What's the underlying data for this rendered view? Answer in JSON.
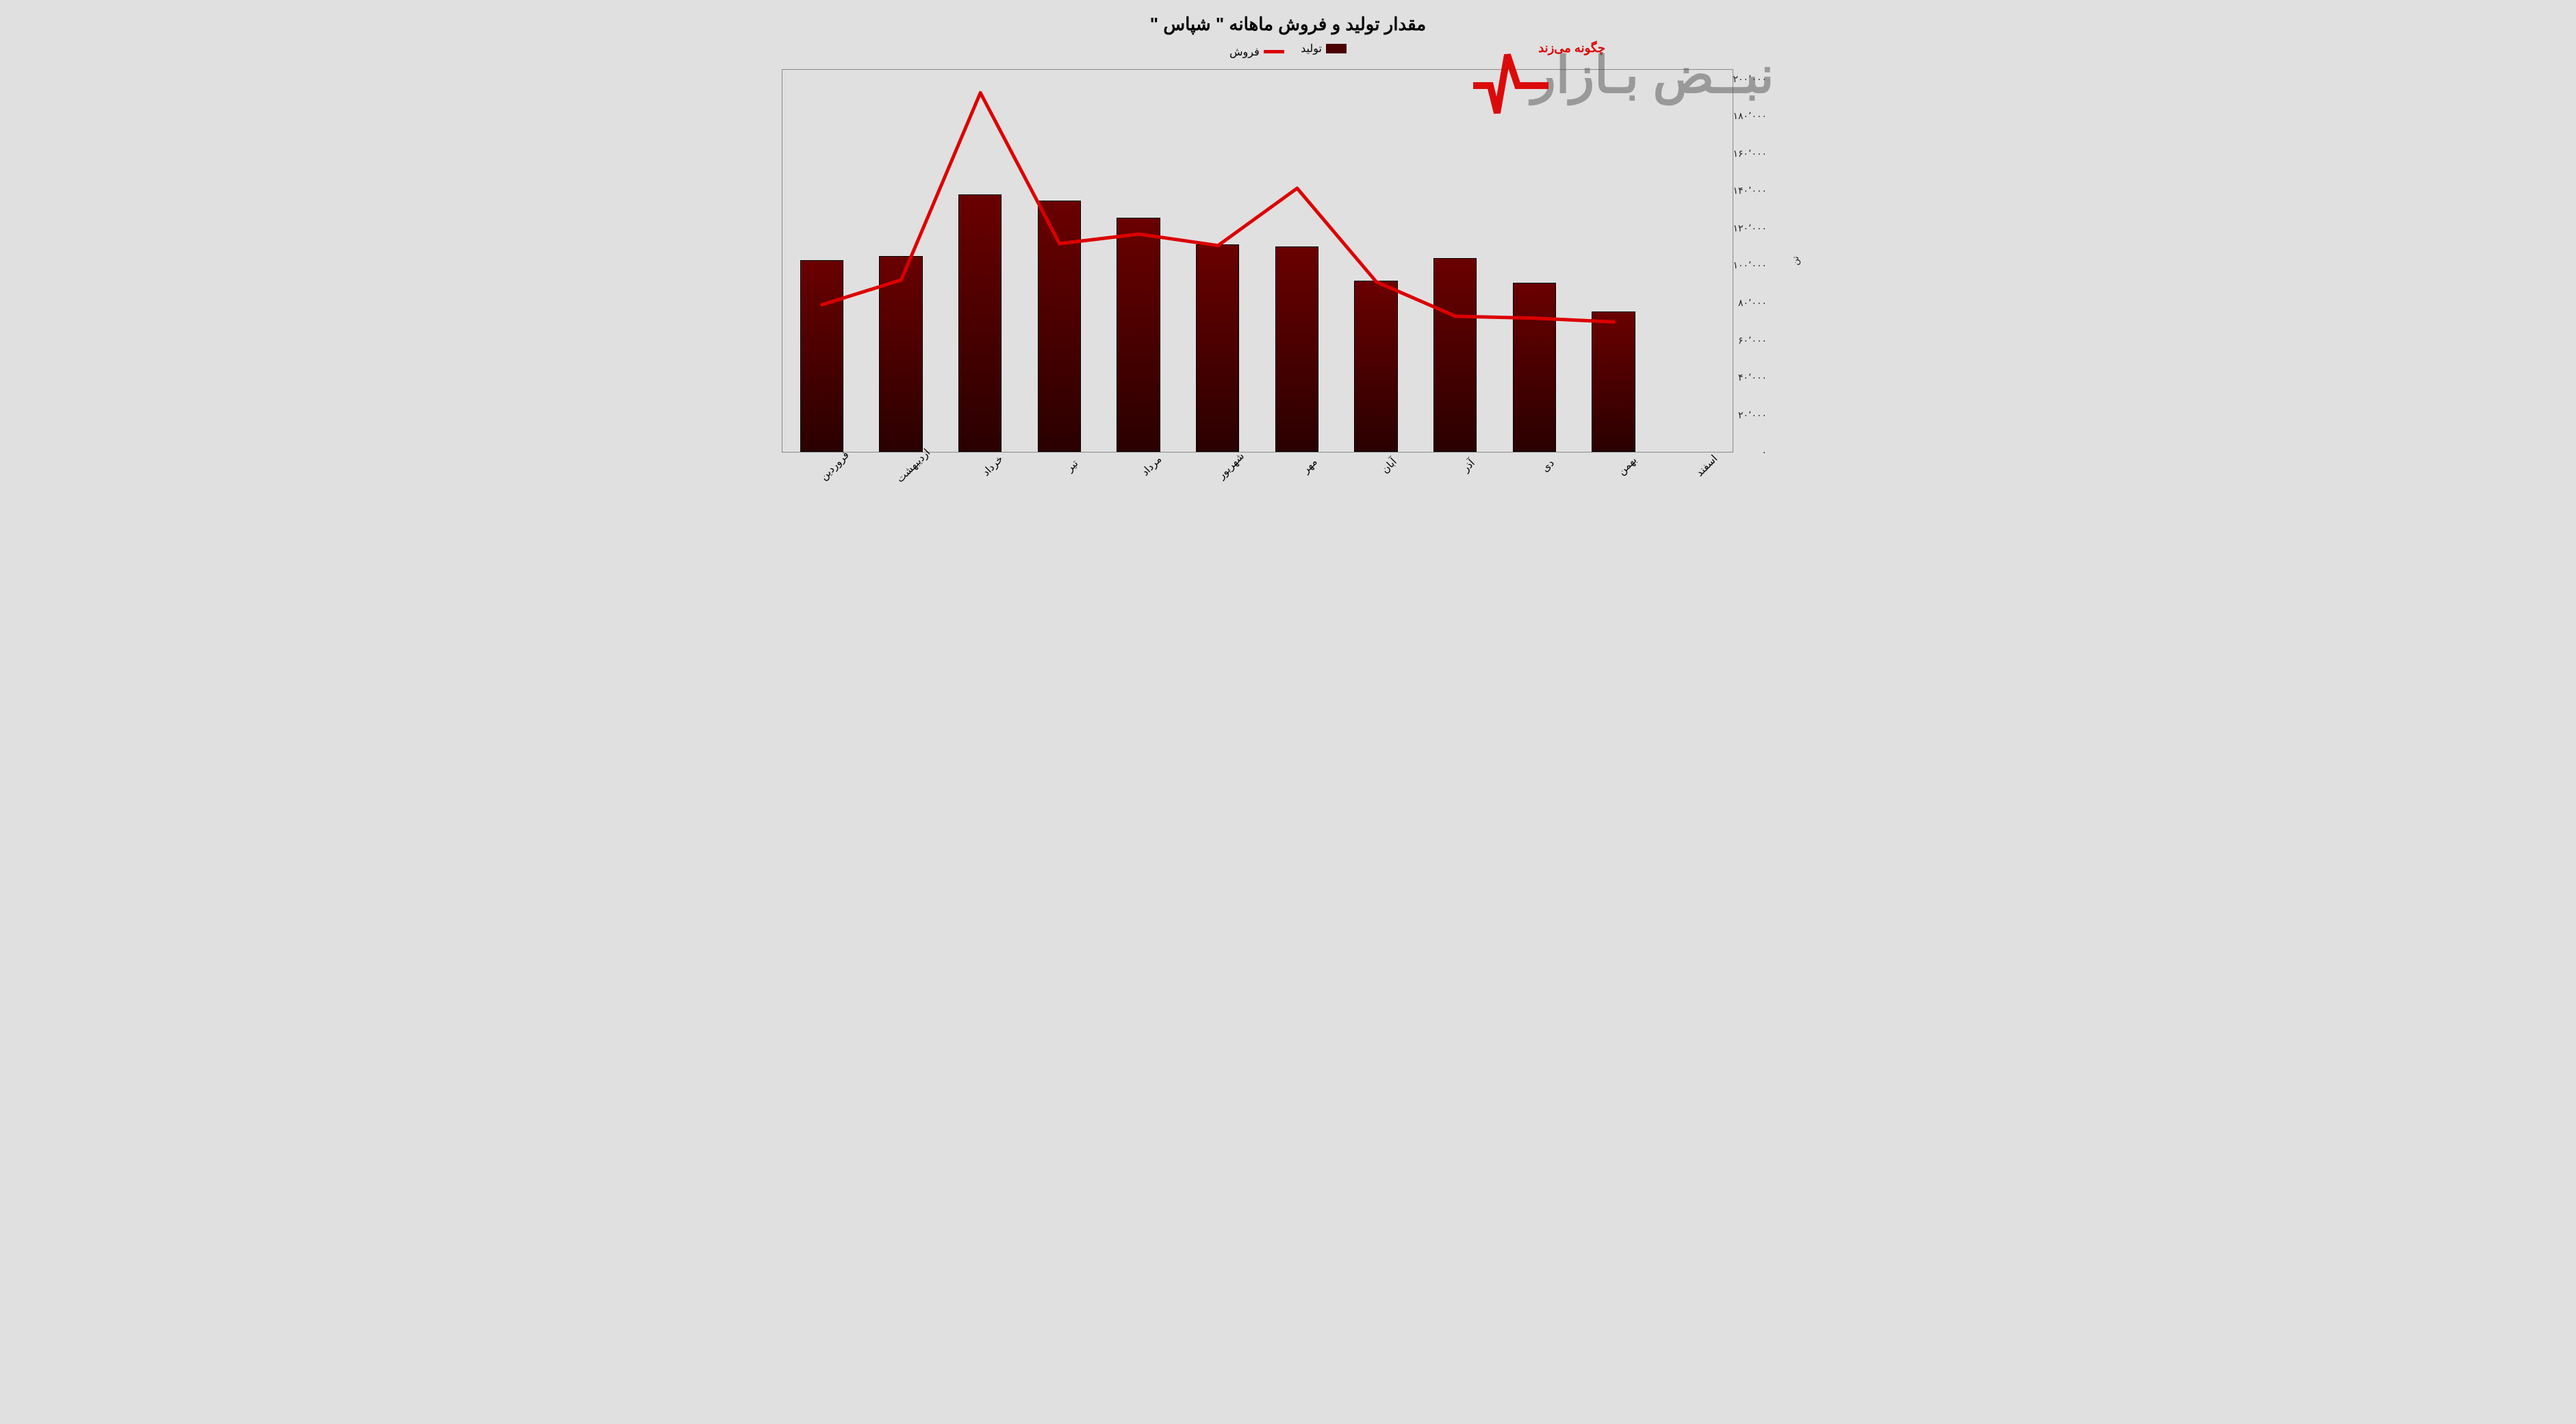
{
  "chart": {
    "type": "bar_line_combo",
    "title": "مقدار تولید و فروش ماهانه \" شپاس \"",
    "title_fontsize": 26,
    "background_color": "#e0e0e0",
    "plot_border_color": "#888888",
    "y_axis_label": "تن",
    "ylim": [
      0,
      200000
    ],
    "ytick_step": 20000,
    "y_ticks": [
      "۰",
      "۲۰٬۰۰۰",
      "۴۰٬۰۰۰",
      "۶۰٬۰۰۰",
      "۸۰٬۰۰۰",
      "۱۰۰٬۰۰۰",
      "۱۲۰٬۰۰۰",
      "۱۴۰٬۰۰۰",
      "۱۶۰٬۰۰۰",
      "۱۸۰٬۰۰۰",
      "۲۰۰٬۰۰۰"
    ],
    "categories": [
      "فروردین",
      "اردیبهشت",
      "خرداد",
      "تیر",
      "مرداد",
      "شهریور",
      "مهر",
      "آبان",
      "آذر",
      "دی",
      "بهمن",
      "اسفند"
    ],
    "series": {
      "bars": {
        "label": "تولید",
        "color_top": "#6a0000",
        "color_bottom": "#2a0000",
        "border_color": "#000000",
        "bar_width_fraction": 0.55,
        "values": [
          100000,
          102000,
          134000,
          131000,
          122000,
          108000,
          107000,
          89000,
          101000,
          88000,
          73000,
          0
        ]
      },
      "line": {
        "label": "فروش",
        "color": "#dc0000",
        "line_width": 5,
        "values": [
          77000,
          90000,
          188000,
          109000,
          114000,
          108000,
          138000,
          89000,
          71000,
          70000,
          68000,
          null
        ]
      }
    },
    "legend": {
      "bar_swatch_color": "#4a0000",
      "line_swatch_color": "#dc0000"
    }
  },
  "watermark": {
    "subtitle": "چگونه می‌زند",
    "main_gray": "بازا",
    "main_red": "ن",
    "prefix_gray": "بـ",
    "pulse_color": "#dc0000"
  }
}
